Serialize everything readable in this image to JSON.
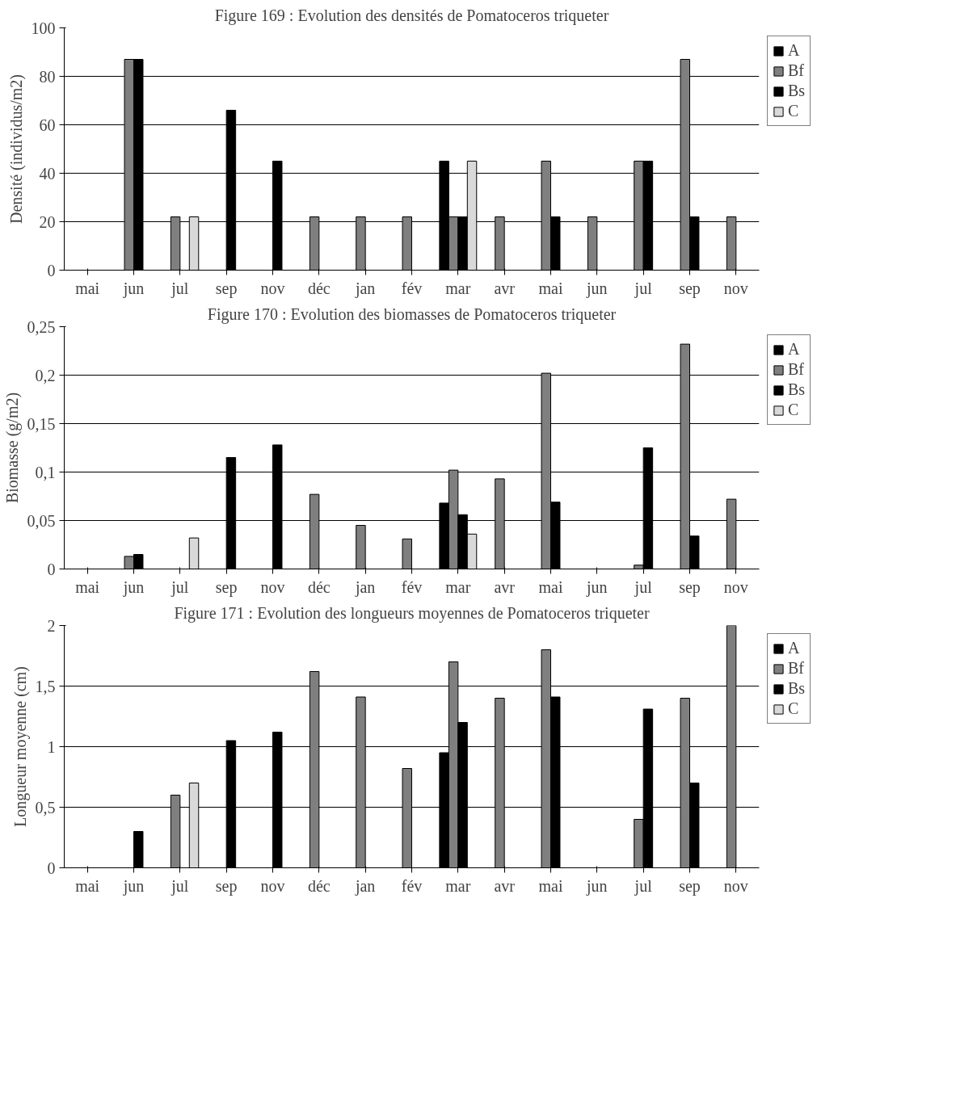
{
  "chart_data": [
    {
      "type": "bar",
      "title": "Figure 169 : Evolution des densités de Pomatoceros triqueter",
      "ylabel": "Densité (individus/m2)",
      "categories": [
        "mai",
        "jun",
        "jul",
        "sep",
        "nov",
        "déc",
        "jan",
        "fév",
        "mar",
        "avr",
        "mai",
        "jun",
        "jul",
        "sep",
        "nov"
      ],
      "ylim": [
        0,
        100
      ],
      "yticks": [
        0,
        20,
        40,
        60,
        80,
        100
      ],
      "grid": "y",
      "legend": "right",
      "series": [
        {
          "name": "A",
          "color": "#000000",
          "values": [
            null,
            null,
            null,
            null,
            null,
            null,
            null,
            null,
            45,
            null,
            null,
            null,
            null,
            null,
            null
          ]
        },
        {
          "name": "Bf",
          "color": "#7f7f7f",
          "values": [
            null,
            87,
            22,
            null,
            null,
            22,
            22,
            22,
            22,
            22,
            45,
            22,
            45,
            87,
            22
          ]
        },
        {
          "name": "Bs",
          "color": "#000000",
          "values": [
            null,
            87,
            null,
            66,
            45,
            null,
            null,
            null,
            22,
            null,
            22,
            null,
            45,
            22,
            null
          ]
        },
        {
          "name": "C",
          "color": "#d9d9d9",
          "values": [
            null,
            null,
            22,
            null,
            null,
            null,
            null,
            null,
            45,
            null,
            null,
            null,
            null,
            null,
            null
          ]
        }
      ]
    },
    {
      "type": "bar",
      "title": "Figure 170 : Evolution des biomasses de Pomatoceros triqueter",
      "ylabel": "Biomasse (g/m2)",
      "categories": [
        "mai",
        "jun",
        "jul",
        "sep",
        "nov",
        "déc",
        "jan",
        "fév",
        "mar",
        "avr",
        "mai",
        "jun",
        "jul",
        "sep",
        "nov"
      ],
      "ylim": [
        0,
        0.25
      ],
      "yticks": [
        0,
        {
          "value": 0.05,
          "label": "0,05"
        },
        {
          "value": 0.1,
          "label": "0,1"
        },
        {
          "value": 0.15,
          "label": "0,15"
        },
        {
          "value": 0.2,
          "label": "0,2"
        },
        {
          "value": 0.25,
          "label": "0,25"
        }
      ],
      "grid": "y",
      "legend": "right",
      "series": [
        {
          "name": "A",
          "color": "#000000",
          "values": [
            null,
            null,
            null,
            null,
            null,
            null,
            null,
            null,
            0.068,
            null,
            null,
            null,
            null,
            null,
            null
          ]
        },
        {
          "name": "Bf",
          "color": "#7f7f7f",
          "values": [
            null,
            0.013,
            null,
            null,
            null,
            0.077,
            0.045,
            0.031,
            0.102,
            0.093,
            0.202,
            null,
            0.004,
            0.232,
            0.072
          ]
        },
        {
          "name": "Bs",
          "color": "#000000",
          "values": [
            null,
            0.015,
            null,
            0.115,
            0.128,
            null,
            null,
            null,
            0.056,
            null,
            0.069,
            null,
            0.125,
            0.034,
            null
          ]
        },
        {
          "name": "C",
          "color": "#d9d9d9",
          "values": [
            null,
            null,
            0.032,
            null,
            null,
            null,
            null,
            null,
            0.036,
            null,
            null,
            null,
            null,
            null,
            null
          ]
        }
      ]
    },
    {
      "type": "bar",
      "title": "Figure 171 : Evolution des longueurs moyennes de Pomatoceros triqueter",
      "ylabel": "Longueur moyenne (cm)",
      "categories": [
        "mai",
        "jun",
        "jul",
        "sep",
        "nov",
        "déc",
        "jan",
        "fév",
        "mar",
        "avr",
        "mai",
        "jun",
        "jul",
        "sep",
        "nov"
      ],
      "ylim": [
        0,
        2
      ],
      "yticks": [
        0,
        {
          "value": 0.5,
          "label": "0,5"
        },
        1,
        {
          "value": 1.5,
          "label": "1,5"
        },
        2
      ],
      "grid": "y",
      "legend": "right",
      "series": [
        {
          "name": "A",
          "color": "#000000",
          "values": [
            null,
            null,
            null,
            null,
            null,
            null,
            null,
            null,
            0.95,
            null,
            null,
            null,
            null,
            null,
            null
          ]
        },
        {
          "name": "Bf",
          "color": "#7f7f7f",
          "values": [
            null,
            null,
            0.6,
            null,
            null,
            1.62,
            1.41,
            0.82,
            1.7,
            1.4,
            1.8,
            null,
            0.4,
            1.4,
            2.0
          ]
        },
        {
          "name": "Bs",
          "color": "#000000",
          "values": [
            null,
            0.3,
            null,
            1.05,
            1.12,
            null,
            null,
            null,
            1.2,
            null,
            1.41,
            null,
            1.31,
            0.7,
            null
          ]
        },
        {
          "name": "C",
          "color": "#d9d9d9",
          "values": [
            null,
            null,
            0.7,
            null,
            null,
            null,
            null,
            null,
            null,
            null,
            null,
            null,
            null,
            null,
            null
          ]
        }
      ]
    }
  ]
}
